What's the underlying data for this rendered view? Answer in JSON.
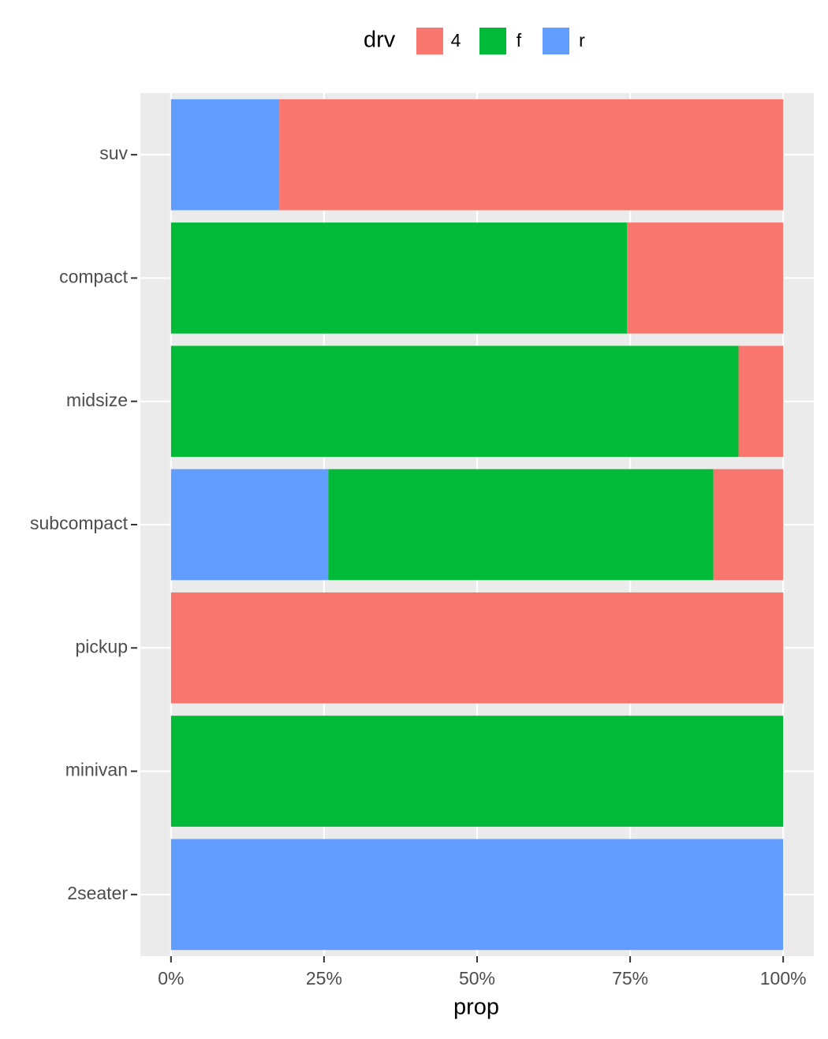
{
  "chart_data": {
    "type": "stacked-bar-horizontal",
    "x_label": "prop",
    "legend_title": "drv",
    "legend_position": "top",
    "categories": [
      "suv",
      "compact",
      "midsize",
      "subcompact",
      "pickup",
      "minivan",
      "2seater"
    ],
    "series": [
      {
        "name": "r",
        "color": "#619cff",
        "values": [
          17.7,
          0,
          0,
          25.7,
          0,
          0,
          100
        ]
      },
      {
        "name": "f",
        "color": "#00ba38",
        "values": [
          0,
          74.5,
          92.7,
          62.9,
          0,
          100,
          0
        ]
      },
      {
        "name": "4",
        "color": "#f8766d",
        "values": [
          82.3,
          25.5,
          7.3,
          11.4,
          100,
          0,
          0
        ]
      }
    ],
    "legend_order": [
      2,
      1,
      0
    ],
    "xlim": [
      -5,
      105
    ],
    "xticks": [
      {
        "value": 0,
        "label": "0%"
      },
      {
        "value": 25,
        "label": "25%"
      },
      {
        "value": 50,
        "label": "50%"
      },
      {
        "value": 75,
        "label": "75%"
      },
      {
        "value": 100,
        "label": "100%"
      }
    ],
    "grid": true
  }
}
